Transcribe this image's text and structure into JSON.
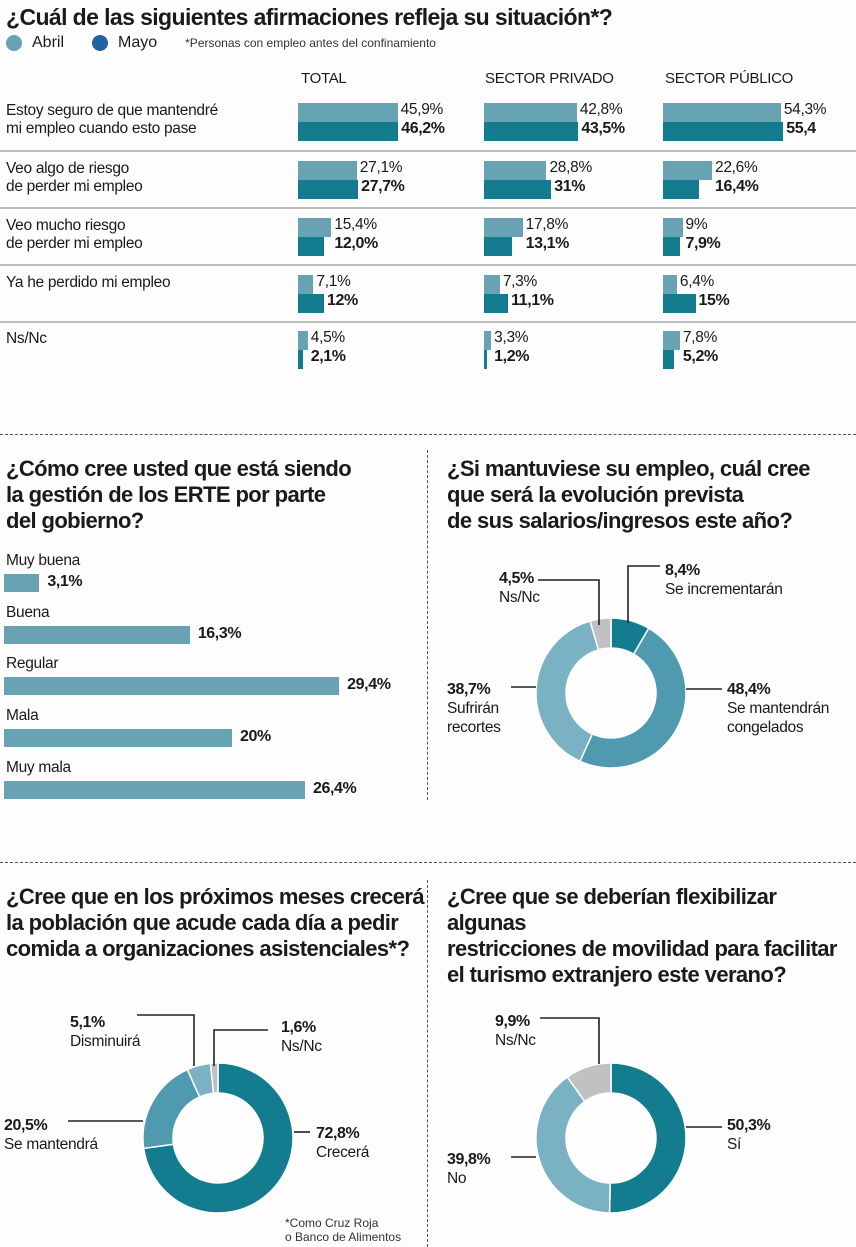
{
  "colors": {
    "abril": "#68a3b4",
    "mayo": "#137d8f",
    "legend_mayo": "#1e64a5",
    "medium": "#4f9aae",
    "light": "#7ab1c3",
    "grey": "#bfc1c2"
  },
  "section1": {
    "title": "¿Cuál de las siguientes afirmaciones refleja su situación*?",
    "legend": [
      {
        "label": "Abril"
      },
      {
        "label": "Mayo"
      }
    ],
    "note": "*Personas con empleo antes del confinamiento"
  },
  "section2": {
    "title_lines": [
      "¿Cómo cree usted que está siendo",
      "la gestión de los ERTE por parte",
      "del gobierno?"
    ]
  },
  "section3": {
    "title_lines": [
      "¿Si mantuviese su empleo, cuál cree",
      "que será la evolución prevista",
      "de sus salarios/ingresos este año?"
    ]
  },
  "section4": {
    "title_lines": [
      "¿Cree que en los próximos meses crecerá",
      "la población que acude cada día a pedir",
      "comida a organizaciones asistenciales*?"
    ],
    "note_lines": [
      "*Como Cruz Roja",
      "o Banco de Alimentos"
    ]
  },
  "section5": {
    "title_lines": [
      "¿Cree que se deberían flexibilizar algunas",
      "restricciones de movilidad para facilitar",
      "el turismo extranjero este verano?"
    ]
  },
  "chart_data": [
    {
      "type": "bar",
      "title": "¿Cuál de las siguientes afirmaciones refleja su situación*?",
      "groups": [
        "TOTAL",
        "SECTOR PRIVADO",
        "SECTOR PÚBLICO"
      ],
      "categories": [
        [
          "Estoy seguro de que mantendré",
          "mi empleo cuando esto pase"
        ],
        [
          "Veo algo de riesgo",
          "de perder mi empleo"
        ],
        [
          "Veo mucho riesgo",
          "de perder mi empleo"
        ],
        [
          "Ya he perdido mi empleo"
        ],
        [
          "Ns/Nc"
        ]
      ],
      "series": [
        {
          "name": "Abril",
          "values": [
            [
              45.9,
              42.8,
              54.3
            ],
            [
              27.1,
              28.8,
              22.6
            ],
            [
              15.4,
              17.8,
              9
            ],
            [
              7.1,
              7.3,
              6.4
            ],
            [
              4.5,
              3.3,
              7.8
            ]
          ],
          "labels": [
            [
              "45,9%",
              "42,8%",
              "54,3%"
            ],
            [
              "27,1%",
              "28,8%",
              "22,6%"
            ],
            [
              "15,4%",
              "17,8%",
              "9%"
            ],
            [
              "7,1%",
              "7,3%",
              "6,4%"
            ],
            [
              "4,5%",
              "3,3%",
              "7,8%"
            ]
          ]
        },
        {
          "name": "Mayo",
          "values": [
            [
              46.2,
              43.5,
              55.4
            ],
            [
              27.7,
              31,
              16.4
            ],
            [
              12.0,
              13.1,
              7.9
            ],
            [
              12,
              11.1,
              15
            ],
            [
              2.1,
              1.2,
              5.2
            ]
          ],
          "labels": [
            [
              "46,2%",
              "43,5%",
              "55,4"
            ],
            [
              "27,7%",
              "31%",
              "16,4%"
            ],
            [
              "12,0%",
              "13,1%",
              "7,9%"
            ],
            [
              "12%",
              "11,1%",
              "15%"
            ],
            [
              "2,1%",
              "1,2%",
              "5,2%"
            ]
          ]
        }
      ],
      "legend": "top-left"
    },
    {
      "type": "bar",
      "title": "¿Cómo cree usted que está siendo la gestión de los ERTE por parte del gobierno?",
      "categories": [
        "Muy buena",
        "Buena",
        "Regular",
        "Mala",
        "Muy mala"
      ],
      "values": [
        3.1,
        16.3,
        29.4,
        20,
        26.4
      ],
      "labels": [
        "3,1%",
        "16,3%",
        "29,4%",
        "20%",
        "26,4%"
      ],
      "orientation": "horizontal"
    },
    {
      "type": "pie",
      "donut": true,
      "title": "¿Si mantuviese su empleo, cuál cree que será la evolución prevista de sus salarios/ingresos este año?",
      "slices": [
        {
          "label": "Se incrementarán",
          "value": 8.4,
          "pct": "8,4%",
          "color": "#137d8f"
        },
        {
          "label": "Se mantendrán congelados",
          "value": 48.4,
          "pct": "48,4%",
          "color": "#4f9aae"
        },
        {
          "label": "Sufrirán recortes",
          "value": 38.7,
          "pct": "38,7%",
          "color": "#7ab1c3"
        },
        {
          "label": "Ns/Nc",
          "value": 4.5,
          "pct": "4,5%",
          "color": "#bfc1c2"
        }
      ]
    },
    {
      "type": "pie",
      "donut": true,
      "title": "¿Cree que en los próximos meses crecerá la población que acude cada día a pedir comida a organizaciones asistenciales*?",
      "slices": [
        {
          "label": "Crecerá",
          "value": 72.8,
          "pct": "72,8%",
          "color": "#137d8f"
        },
        {
          "label": "Se mantendrá",
          "value": 20.5,
          "pct": "20,5%",
          "color": "#4f9aae"
        },
        {
          "label": "Disminuirá",
          "value": 5.1,
          "pct": "5,1%",
          "color": "#7ab1c3"
        },
        {
          "label": "Ns/Nc",
          "value": 1.6,
          "pct": "1,6%",
          "color": "#bfc1c2"
        }
      ]
    },
    {
      "type": "pie",
      "donut": true,
      "title": "¿Cree que se deberían flexibilizar algunas restricciones de movilidad para facilitar el turismo extranjero este verano?",
      "slices": [
        {
          "label": "Sí",
          "value": 50.3,
          "pct": "50,3%",
          "color": "#137d8f"
        },
        {
          "label": "No",
          "value": 39.8,
          "pct": "39,8%",
          "color": "#7ab1c3"
        },
        {
          "label": "Ns/Nc",
          "value": 9.9,
          "pct": "9,9%",
          "color": "#bfc1c2"
        }
      ]
    }
  ]
}
